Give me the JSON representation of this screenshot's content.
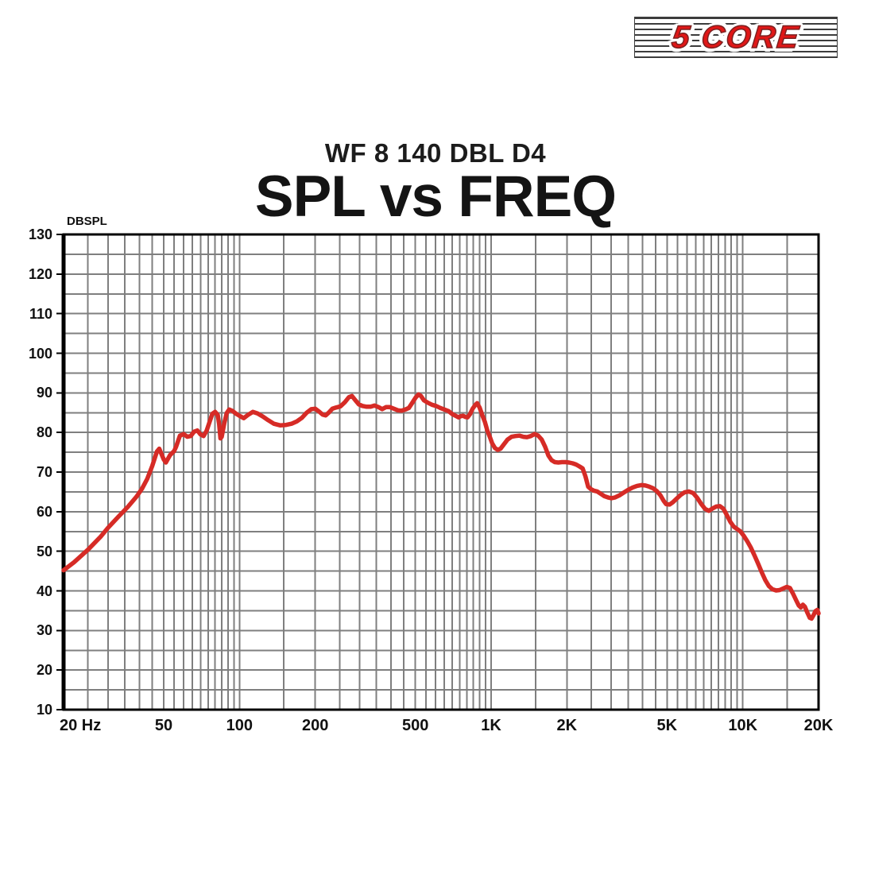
{
  "logo": {
    "text": "5 CORE",
    "text_color": "#e01717"
  },
  "header": {
    "subtitle": "WF 8 140 DBL D4",
    "title": "SPL vs FREQ"
  },
  "chart": {
    "y_axis_unit": "DBSPL",
    "colors": {
      "curve": "#d62b26",
      "grid": "#7f7f7f",
      "border": "#000000"
    }
  },
  "chart_data": {
    "type": "line",
    "title": "SPL vs FREQ",
    "subtitle": "WF 8 140 DBL D4",
    "xlabel": "",
    "ylabel": "DBSPL",
    "x_scale": "log",
    "xlim": [
      20,
      20000
    ],
    "ylim": [
      10,
      130
    ],
    "grid": "on",
    "y_tick_step": 10,
    "y_minor_step": 5,
    "y_tick_labels": [
      "130",
      "120",
      "110",
      "100",
      "90",
      "80",
      "70",
      "60",
      "50",
      "40",
      "30",
      "20",
      "10"
    ],
    "x_ticks": [
      {
        "freq": 20,
        "label": "20 Hz"
      },
      {
        "freq": 50,
        "label": "50"
      },
      {
        "freq": 100,
        "label": "100"
      },
      {
        "freq": 200,
        "label": "200"
      },
      {
        "freq": 500,
        "label": "500"
      },
      {
        "freq": 1000,
        "label": "1K"
      },
      {
        "freq": 2000,
        "label": "2K"
      },
      {
        "freq": 5000,
        "label": "5K"
      },
      {
        "freq": 10000,
        "label": "10K"
      },
      {
        "freq": 20000,
        "label": "20K"
      }
    ],
    "series": [
      {
        "name": "SPL",
        "color": "#d62b26",
        "points": [
          [
            20,
            45.2
          ],
          [
            22,
            47.2
          ],
          [
            25,
            50.4
          ],
          [
            28,
            53.6
          ],
          [
            30,
            55.9
          ],
          [
            33,
            58.7
          ],
          [
            36,
            61.2
          ],
          [
            39,
            63.8
          ],
          [
            41,
            65.8
          ],
          [
            43,
            68.3
          ],
          [
            45,
            71.5
          ],
          [
            47,
            75.2
          ],
          [
            48,
            75.9
          ],
          [
            50,
            73.2
          ],
          [
            51,
            72.4
          ],
          [
            53,
            74.3
          ],
          [
            55,
            75.3
          ],
          [
            56,
            76.4
          ],
          [
            58,
            79.2
          ],
          [
            60,
            79.6
          ],
          [
            62,
            78.9
          ],
          [
            64,
            79.1
          ],
          [
            66,
            80.2
          ],
          [
            68,
            80.5
          ],
          [
            70,
            79.5
          ],
          [
            72,
            79.1
          ],
          [
            74,
            80.4
          ],
          [
            76,
            82.6
          ],
          [
            78,
            84.7
          ],
          [
            80,
            85.2
          ],
          [
            82,
            84.4
          ],
          [
            83,
            82.2
          ],
          [
            84,
            78.5
          ],
          [
            85,
            78.9
          ],
          [
            87,
            82.3
          ],
          [
            89,
            84.9
          ],
          [
            91,
            85.8
          ],
          [
            94,
            85.4
          ],
          [
            97,
            84.7
          ],
          [
            100,
            84.2
          ],
          [
            104,
            83.6
          ],
          [
            108,
            84.4
          ],
          [
            113,
            85.2
          ],
          [
            118,
            84.8
          ],
          [
            124,
            84
          ],
          [
            130,
            83.1
          ],
          [
            137,
            82.2
          ],
          [
            145,
            81.8
          ],
          [
            153,
            81.9
          ],
          [
            161,
            82.2
          ],
          [
            169,
            82.8
          ],
          [
            177,
            83.7
          ],
          [
            185,
            85
          ],
          [
            193,
            85.9
          ],
          [
            200,
            86
          ],
          [
            207,
            85.3
          ],
          [
            214,
            84.5
          ],
          [
            220,
            84.3
          ],
          [
            227,
            85.1
          ],
          [
            234,
            86
          ],
          [
            242,
            86.3
          ],
          [
            252,
            86.6
          ],
          [
            262,
            87.6
          ],
          [
            272,
            88.9
          ],
          [
            280,
            89.2
          ],
          [
            289,
            88.1
          ],
          [
            298,
            87.1
          ],
          [
            308,
            86.7
          ],
          [
            320,
            86.5
          ],
          [
            332,
            86.5
          ],
          [
            344,
            86.8
          ],
          [
            357,
            86.4
          ],
          [
            369,
            85.9
          ],
          [
            382,
            86.4
          ],
          [
            396,
            86.4
          ],
          [
            411,
            86
          ],
          [
            426,
            85.6
          ],
          [
            441,
            85.5
          ],
          [
            456,
            85.8
          ],
          [
            471,
            86.2
          ],
          [
            486,
            87.5
          ],
          [
            501,
            88.8
          ],
          [
            515,
            89.6
          ],
          [
            526,
            89.2
          ],
          [
            541,
            88.1
          ],
          [
            561,
            87.5
          ],
          [
            582,
            87
          ],
          [
            604,
            86.7
          ],
          [
            628,
            86.2
          ],
          [
            652,
            85.8
          ],
          [
            677,
            85.4
          ],
          [
            702,
            84.6
          ],
          [
            722,
            84.2
          ],
          [
            742,
            83.8
          ],
          [
            758,
            84.1
          ],
          [
            774,
            84.2
          ],
          [
            790,
            83.9
          ],
          [
            806,
            83.8
          ],
          [
            824,
            84.6
          ],
          [
            844,
            86
          ],
          [
            864,
            86.9
          ],
          [
            880,
            87.4
          ],
          [
            900,
            86.3
          ],
          [
            922,
            84.4
          ],
          [
            944,
            82.7
          ],
          [
            966,
            80.5
          ],
          [
            988,
            78.9
          ],
          [
            1010,
            77.2
          ],
          [
            1035,
            76.1
          ],
          [
            1062,
            75.6
          ],
          [
            1090,
            75.9
          ],
          [
            1124,
            77
          ],
          [
            1162,
            78.2
          ],
          [
            1205,
            78.9
          ],
          [
            1250,
            79.1
          ],
          [
            1296,
            79.2
          ],
          [
            1342,
            78.9
          ],
          [
            1388,
            78.8
          ],
          [
            1438,
            79.1
          ],
          [
            1488,
            79.6
          ],
          [
            1538,
            79.2
          ],
          [
            1588,
            78.2
          ],
          [
            1638,
            76.4
          ],
          [
            1688,
            74.2
          ],
          [
            1738,
            73
          ],
          [
            1790,
            72.5
          ],
          [
            1850,
            72.4
          ],
          [
            1912,
            72.5
          ],
          [
            1975,
            72.5
          ],
          [
            2040,
            72.4
          ],
          [
            2108,
            72.2
          ],
          [
            2176,
            71.9
          ],
          [
            2246,
            71.4
          ],
          [
            2310,
            70.9
          ],
          [
            2370,
            68.9
          ],
          [
            2430,
            66.3
          ],
          [
            2490,
            65.7
          ],
          [
            2560,
            65.3
          ],
          [
            2640,
            65.1
          ],
          [
            2730,
            64.5
          ],
          [
            2820,
            63.9
          ],
          [
            2910,
            63.6
          ],
          [
            3005,
            63.4
          ],
          [
            3110,
            63.6
          ],
          [
            3230,
            64.1
          ],
          [
            3360,
            64.8
          ],
          [
            3500,
            65.5
          ],
          [
            3650,
            66.1
          ],
          [
            3800,
            66.5
          ],
          [
            3950,
            66.7
          ],
          [
            4100,
            66.6
          ],
          [
            4250,
            66.3
          ],
          [
            4400,
            65.9
          ],
          [
            4550,
            65.2
          ],
          [
            4700,
            64.2
          ],
          [
            4850,
            62.7
          ],
          [
            4960,
            61.9
          ],
          [
            5120,
            61.8
          ],
          [
            5280,
            62.4
          ],
          [
            5460,
            63.3
          ],
          [
            5660,
            64.2
          ],
          [
            5880,
            64.9
          ],
          [
            6110,
            65.1
          ],
          [
            6350,
            64.7
          ],
          [
            6590,
            63.5
          ],
          [
            6830,
            62
          ],
          [
            7080,
            60.7
          ],
          [
            7330,
            60.2
          ],
          [
            7580,
            60.8
          ],
          [
            7840,
            61.3
          ],
          [
            8110,
            61.4
          ],
          [
            8380,
            60.7
          ],
          [
            8650,
            59.1
          ],
          [
            8930,
            57.4
          ],
          [
            9210,
            56.2
          ],
          [
            9500,
            55.6
          ],
          [
            9790,
            55
          ],
          [
            10090,
            53.9
          ],
          [
            10400,
            52.6
          ],
          [
            10750,
            51
          ],
          [
            11120,
            49
          ],
          [
            11500,
            46.9
          ],
          [
            11890,
            44.7
          ],
          [
            12290,
            42.7
          ],
          [
            12700,
            41.2
          ],
          [
            13120,
            40.4
          ],
          [
            13560,
            40.1
          ],
          [
            14010,
            40.2
          ],
          [
            14470,
            40.6
          ],
          [
            14950,
            41
          ],
          [
            15400,
            40.7
          ],
          [
            15860,
            39.2
          ],
          [
            16300,
            37.6
          ],
          [
            16690,
            36.3
          ],
          [
            17010,
            35.8
          ],
          [
            17330,
            36.5
          ],
          [
            17650,
            36
          ],
          [
            18050,
            34.5
          ],
          [
            18450,
            33.2
          ],
          [
            18760,
            33
          ],
          [
            19080,
            33.8
          ],
          [
            19440,
            34.9
          ],
          [
            19780,
            35.2
          ],
          [
            20000,
            34.3
          ]
        ]
      }
    ]
  }
}
